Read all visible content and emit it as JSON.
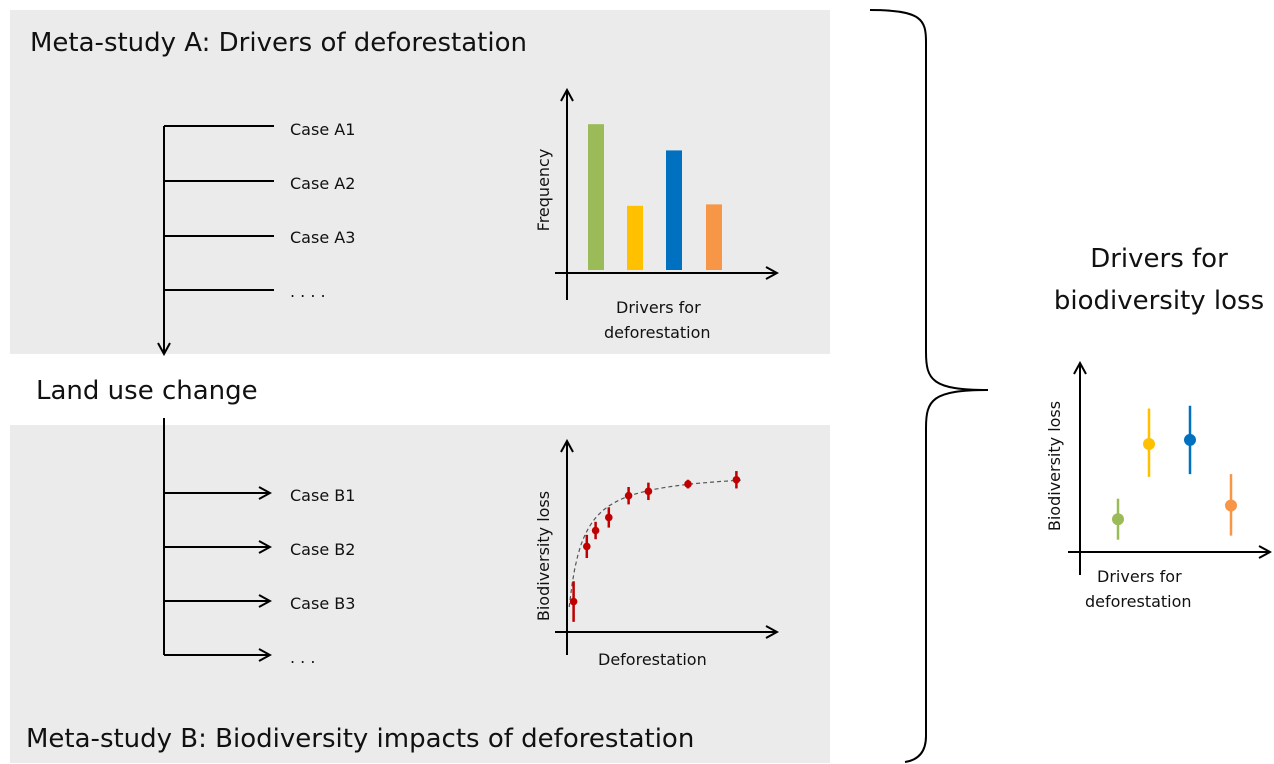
{
  "meta_study_a": {
    "title": "Meta-study A: Drivers of deforestation",
    "cases": [
      "Case A1",
      "Case A2",
      "Case A3",
      ". . . ."
    ],
    "chart_ylabel": "Frequency",
    "chart_xlabel_line1": "Drivers for",
    "chart_xlabel_line2": "deforestation"
  },
  "land_use_change": "Land use change",
  "meta_study_b": {
    "title": "Meta-study B: Biodiversity impacts of deforestation",
    "cases": [
      "Case B1",
      "Case B2",
      "Case B3",
      ". . ."
    ],
    "chart_ylabel": "Biodiversity loss",
    "chart_xlabel": "Deforestation"
  },
  "synthesis": {
    "title_line1": "Drivers for",
    "title_line2": "biodiversity loss",
    "chart_ylabel": "Biodiversity loss",
    "chart_xlabel_line1": "Drivers for",
    "chart_xlabel_line2": "deforestation"
  },
  "colors": {
    "panel": "#ebebeb",
    "green": "#9bbb59",
    "yellow": "#ffc000",
    "blue": "#0070c0",
    "orange": "#f79646",
    "red": "#c00000"
  },
  "chart_data": [
    {
      "type": "bar",
      "categories": [
        "green",
        "yellow",
        "blue",
        "orange"
      ],
      "values": [
        1.0,
        0.44,
        0.82,
        0.45
      ],
      "ylim": [
        0,
        1.2
      ]
    },
    {
      "type": "scatter",
      "x": [
        0.03,
        0.09,
        0.13,
        0.19,
        0.28,
        0.37,
        0.55,
        0.77
      ],
      "y": [
        0.21,
        0.59,
        0.7,
        0.79,
        0.94,
        0.97,
        1.02,
        1.05
      ],
      "err": [
        0.14,
        0.08,
        0.06,
        0.07,
        0.06,
        0.06,
        0.03,
        0.06
      ],
      "fit": "saturating curve (dashed)",
      "ylim": [
        0,
        1.2
      ]
    },
    {
      "type": "scatter",
      "categories": [
        "green",
        "yellow",
        "blue",
        "orange"
      ],
      "y": [
        0.24,
        0.79,
        0.82,
        0.34
      ],
      "low": [
        0.09,
        0.55,
        0.57,
        0.12
      ],
      "high": [
        0.39,
        1.05,
        1.07,
        0.57
      ],
      "ylim": [
        0,
        1.2
      ]
    }
  ]
}
